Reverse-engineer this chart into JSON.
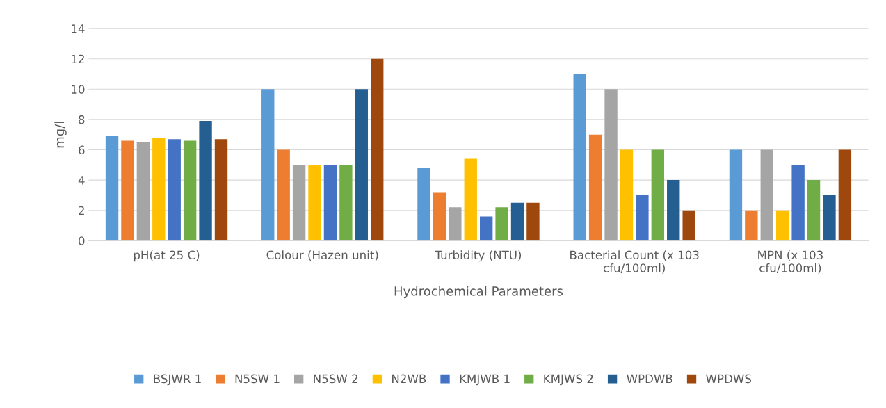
{
  "chart_data": {
    "type": "bar",
    "xlabel": "Hydrochemical Parameters",
    "ylabel": "mg/l",
    "categories": [
      "pH(at 25 C)",
      "Colour (Hazen unit)",
      "Turbidity (NTU)",
      "Bacterial Count (x 103\ncfu/100ml)",
      "MPN (x 103\ncfu/100ml)"
    ],
    "series": [
      {
        "name": "BSJWR 1",
        "color": "#5b9bd5",
        "values": [
          6.9,
          10,
          4.8,
          11,
          6
        ]
      },
      {
        "name": "N5SW 1",
        "color": "#ed7d31",
        "values": [
          6.6,
          6,
          3.2,
          7,
          2
        ]
      },
      {
        "name": "N5SW 2",
        "color": "#a5a5a5",
        "values": [
          6.5,
          5,
          2.2,
          10,
          6
        ]
      },
      {
        "name": "N2WB",
        "color": "#ffc000",
        "values": [
          6.8,
          5,
          5.4,
          6,
          2
        ]
      },
      {
        "name": "KMJWB 1",
        "color": "#4472c4",
        "values": [
          6.7,
          5,
          1.6,
          3,
          5
        ]
      },
      {
        "name": "KMJWS 2",
        "color": "#70ad47",
        "values": [
          6.6,
          5,
          2.2,
          6,
          4
        ]
      },
      {
        "name": "WPDWB",
        "color": "#255e91",
        "values": [
          7.9,
          10,
          2.5,
          4,
          3
        ]
      },
      {
        "name": "WPDWS",
        "color": "#9e480e",
        "values": [
          6.7,
          12,
          2.5,
          2,
          6
        ]
      }
    ],
    "ylim": [
      0,
      14
    ],
    "yticks": [
      0,
      2,
      4,
      6,
      8,
      10,
      12,
      14
    ],
    "grid": "y",
    "legend": "bottom"
  }
}
